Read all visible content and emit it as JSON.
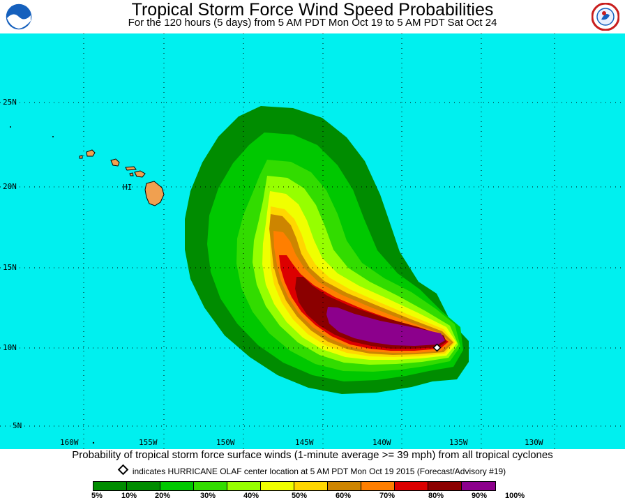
{
  "header": {
    "title": "Tropical Storm Force Wind Speed Probabilities",
    "subtitle": "For the 120 hours (5 days) from 5 AM PDT Mon Oct 19 to 5 AM PDT Sat Oct 24"
  },
  "logos": {
    "left": "NOAA",
    "right": "National Weather Service"
  },
  "map": {
    "latitude_labels": [
      "25N",
      "20N",
      "15N",
      "10N",
      "5N"
    ],
    "longitude_labels": [
      "160W",
      "155W",
      "150W",
      "145W",
      "140W",
      "135W",
      "130W"
    ],
    "place_label": "HI",
    "ocean_color": "#00f0ef",
    "land_color": "#f0a050"
  },
  "footer": {
    "description": "Probability of tropical storm force surface winds (1-minute average >= 39 mph) from all tropical cyclones",
    "center_note": "indicates HURRICANE OLAF center location at 5 AM PDT Mon Oct 19 2015 (Forecast/Advisory #19)"
  },
  "legend": {
    "labels": [
      "5%",
      "10%",
      "20%",
      "30%",
      "40%",
      "50%",
      "60%",
      "70%",
      "80%",
      "90%",
      "100%"
    ],
    "colors": [
      "#008c00",
      "#00c800",
      "#32dc00",
      "#96ff00",
      "#f0ff00",
      "#ffd700",
      "#cd8500",
      "#ff7f00",
      "#dc0000",
      "#8b0000",
      "#8c008c"
    ]
  }
}
